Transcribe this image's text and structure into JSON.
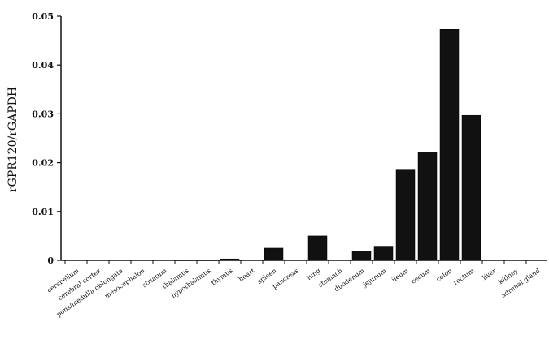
{
  "chart_data": {
    "type": "bar",
    "ylabel": "rGPR120/rGAPDH",
    "xlabel": "",
    "ylim": [
      0,
      0.05
    ],
    "yticks": [
      0,
      0.01,
      0.02,
      0.03,
      0.04,
      0.05
    ],
    "ytick_labels": [
      "0",
      "0.01",
      "0.02",
      "0.03",
      "0.04",
      "0.05"
    ],
    "grid": false,
    "bar_color": "#111111",
    "categories": [
      "cerebellum",
      "cerebral cortex",
      "pons/medulla oblongata",
      "mesocephalon",
      "striatum",
      "thalamus",
      "hypothalamus",
      "thymus",
      "heart",
      "spleen",
      "pancreas",
      "lung",
      "stomach",
      "duodenum",
      "jejunum",
      "ileum",
      "cecum",
      "colon",
      "rectum",
      "liver",
      "kidney",
      "adrenal gland"
    ],
    "values": [
      0,
      0,
      0,
      0,
      0,
      0.0001,
      0.0001,
      0.0003,
      0,
      0.0025,
      0,
      0.005,
      0,
      0.0019,
      0.0029,
      0.0185,
      0.0222,
      0.0473,
      0.0297,
      0,
      0,
      0
    ]
  }
}
